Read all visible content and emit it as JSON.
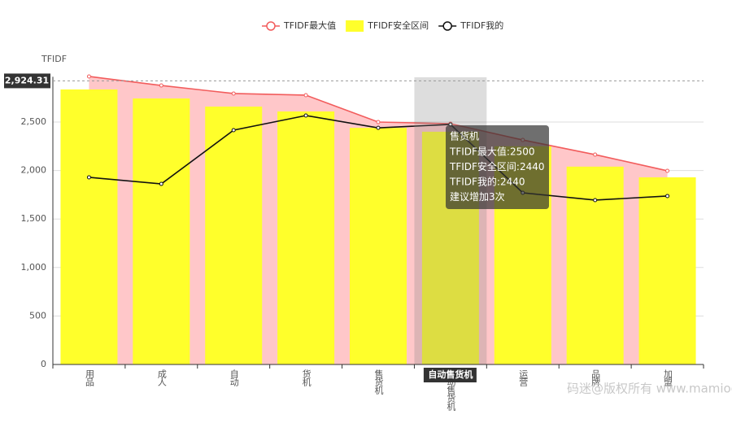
{
  "chart_data": {
    "type": "bar",
    "y_axis_label": "TFIDF",
    "categories": [
      "用品",
      "成人",
      "自动",
      "货机",
      "售货机",
      "自动售货机",
      "运营",
      "品牌",
      "加盟"
    ],
    "series": [
      {
        "name": "TFIDF最大值",
        "type": "line",
        "area": true,
        "color": "#f25c5c",
        "area_color": "#ffc7c9",
        "values": [
          2970,
          2877,
          2794,
          2777,
          2500,
          2483,
          2315,
          2164,
          1997
        ]
      },
      {
        "name": "TFIDF安全区间",
        "type": "bar",
        "color": "#ffff2b",
        "values": [
          2836,
          2743,
          2659,
          2609,
          2440,
          2400,
          2250,
          2040,
          1930
        ]
      },
      {
        "name": "TFIDF我的",
        "type": "line",
        "color": "#111111",
        "values": [
          1930,
          1862,
          2416,
          2567,
          2440,
          2475,
          1770,
          1695,
          1737
        ]
      }
    ],
    "ylim": [
      0,
      3000
    ],
    "yticks": [
      0,
      {
        "value": 500,
        "label": "500"
      },
      {
        "value": 1000,
        "label": "1,000"
      },
      {
        "value": 1500,
        "label": "1,500"
      },
      {
        "value": 2000,
        "label": "2,000"
      },
      {
        "value": 2500,
        "label": "2,500"
      }
    ],
    "grid": true,
    "legend_position": "top",
    "pointer": {
      "category_index": 5,
      "y": {
        "value": 2924.31,
        "label": "2,924.31"
      }
    },
    "tooltip": {
      "title": "售货机",
      "lines": [
        "TFIDF最大值:2500",
        "TFIDF安全区间:2440",
        "TFIDF我的:2440",
        "建议增加3次"
      ]
    },
    "watermark": "码迷@版权所有 www.mamioo.com"
  }
}
